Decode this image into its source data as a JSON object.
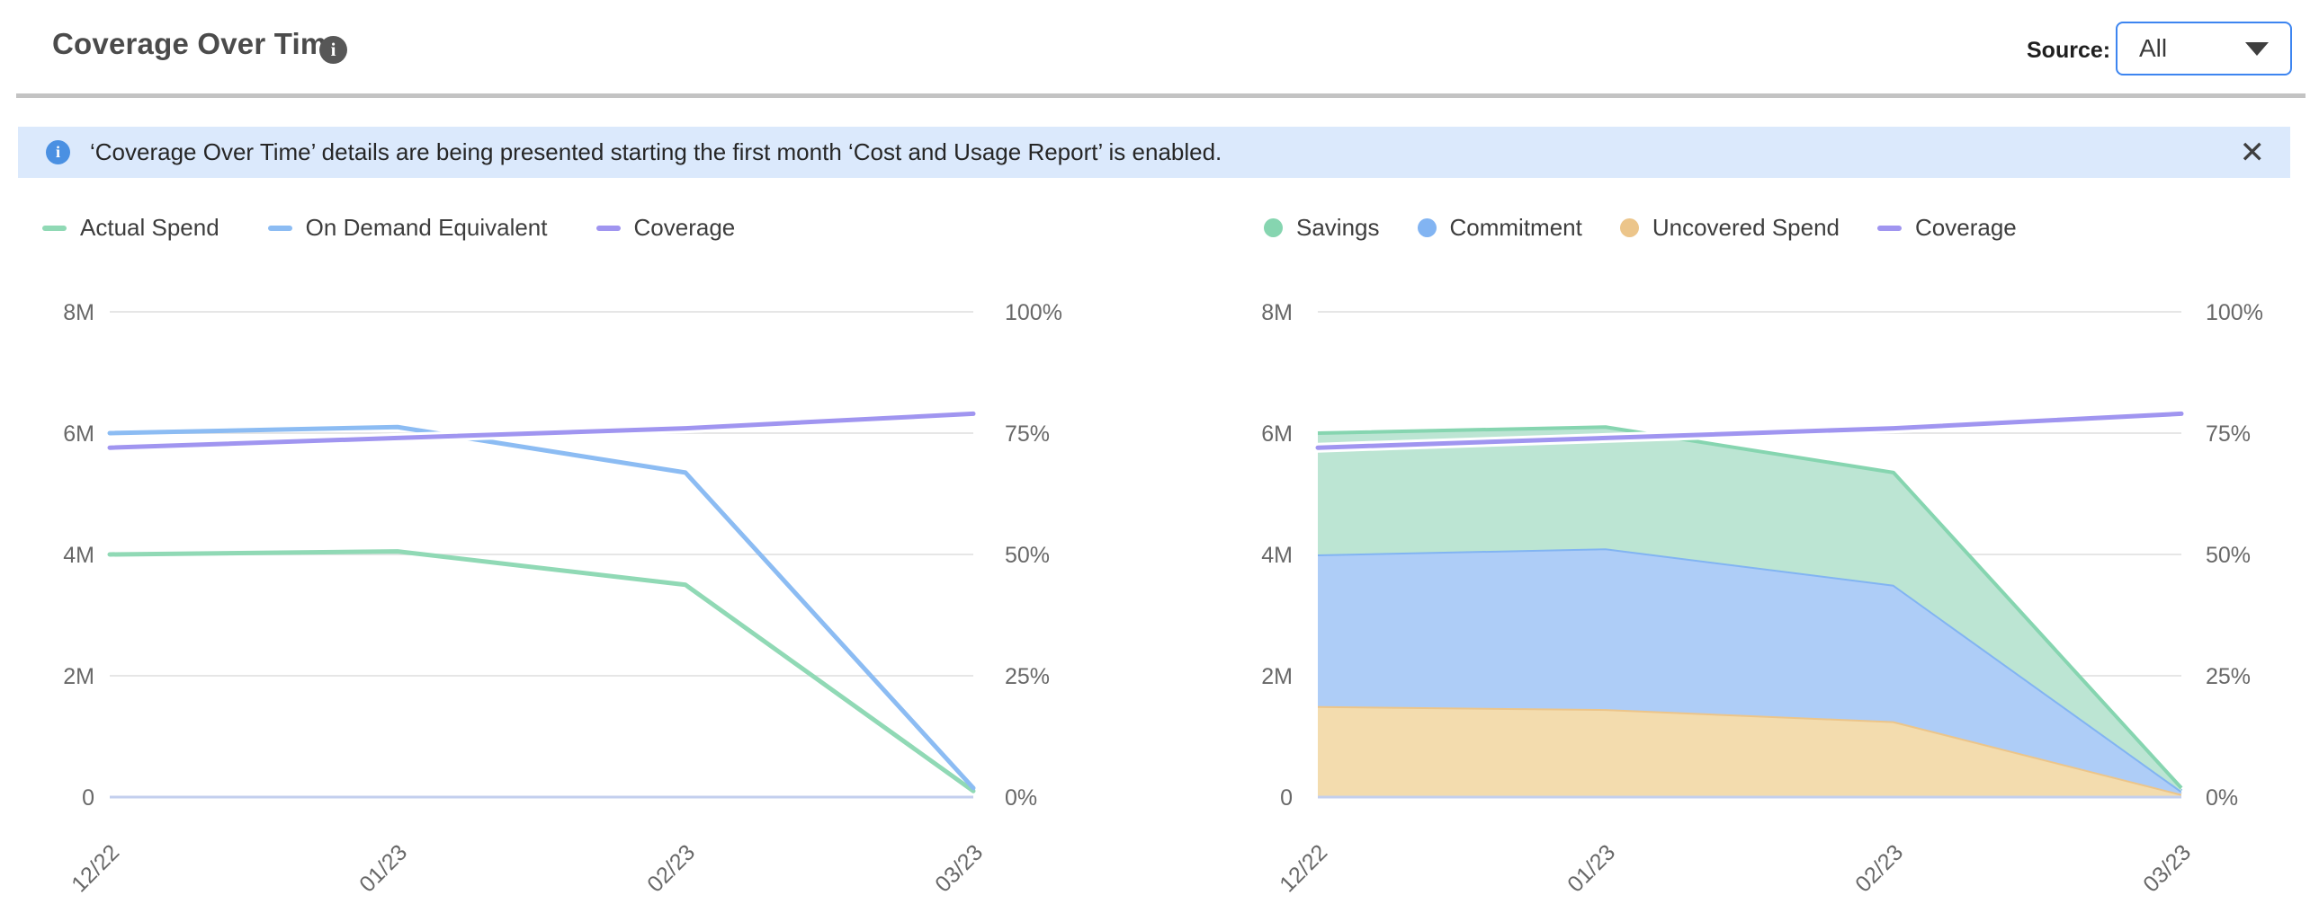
{
  "header": {
    "title": "Coverage Over Time",
    "source_label": "Source:",
    "source_value": "All",
    "info_icon_glyph": "i"
  },
  "banner": {
    "info_icon_glyph": "i",
    "text": "‘Coverage Over Time’ details are being presented starting the first month ‘Cost and Usage Report’ is enabled.",
    "close_glyph": "✕"
  },
  "colors": {
    "accent_blue_border": "#3d85f0",
    "banner_bg": "#dbe9fc",
    "banner_icon": "#4a90e2",
    "header_icon": "#575757",
    "divider": "#c3c3c3",
    "gridline": "#e6e6e6",
    "zero_axis": "#c3cfee",
    "axis_text": "#686868"
  },
  "chart_data": [
    {
      "type": "line",
      "title": "",
      "categories": [
        "12/22",
        "01/23",
        "02/23",
        "03/23"
      ],
      "left_axis": {
        "label": "",
        "ticks": [
          "8M",
          "6M",
          "4M",
          "2M",
          "0"
        ],
        "max": 8,
        "min": 0
      },
      "right_axis": {
        "label": "",
        "ticks": [
          "100%",
          "75%",
          "50%",
          "25%",
          "0%"
        ],
        "max": 100,
        "min": 0
      },
      "grid": true,
      "legend_position": "top-left",
      "series": [
        {
          "name": "Actual Spend",
          "marker": "dash",
          "kind": "line",
          "axis": "left",
          "color": "#90d9b5",
          "values": [
            4.0,
            4.05,
            3.5,
            0.1
          ]
        },
        {
          "name": "On Demand Equivalent",
          "marker": "dash",
          "kind": "line",
          "axis": "left",
          "color": "#8cbcf3",
          "values": [
            6.0,
            6.1,
            5.35,
            0.15
          ]
        },
        {
          "name": "Coverage",
          "marker": "dash",
          "kind": "line",
          "axis": "right",
          "color": "#a095f0",
          "halo": "#ffffff",
          "values": [
            72,
            74,
            76,
            79
          ]
        }
      ]
    },
    {
      "type": "area",
      "title": "",
      "categories": [
        "12/22",
        "01/23",
        "02/23",
        "03/23"
      ],
      "left_axis": {
        "label": "",
        "ticks": [
          "8M",
          "6M",
          "4M",
          "2M",
          "0"
        ],
        "max": 8,
        "min": 0
      },
      "right_axis": {
        "label": "",
        "ticks": [
          "100%",
          "75%",
          "50%",
          "25%",
          "0%"
        ],
        "max": 100,
        "min": 0
      },
      "grid": true,
      "legend_position": "top-left",
      "stacking": "normal",
      "series": [
        {
          "name": "Uncovered Spend",
          "marker": "dot",
          "kind": "area",
          "axis": "left",
          "color": "#ecc58a",
          "fill": "#f3dcae",
          "values": [
            1.5,
            1.45,
            1.25,
            0.05
          ]
        },
        {
          "name": "Commitment",
          "marker": "dot",
          "kind": "area",
          "axis": "left",
          "color": "#82b4f2",
          "fill": "#aecdf7",
          "values": [
            2.5,
            2.65,
            2.25,
            0.05
          ]
        },
        {
          "name": "Savings",
          "marker": "dot",
          "kind": "area",
          "axis": "left",
          "color": "#86d5b0",
          "fill": "#bce5d3",
          "values": [
            2.0,
            2.0,
            1.85,
            0.05
          ]
        },
        {
          "name": "Coverage",
          "marker": "dash",
          "kind": "line",
          "axis": "right",
          "color": "#a095f0",
          "halo": "#ffffff",
          "values": [
            72,
            74,
            76,
            79
          ]
        }
      ],
      "legend_order": [
        "Savings",
        "Commitment",
        "Uncovered Spend",
        "Coverage"
      ]
    }
  ]
}
